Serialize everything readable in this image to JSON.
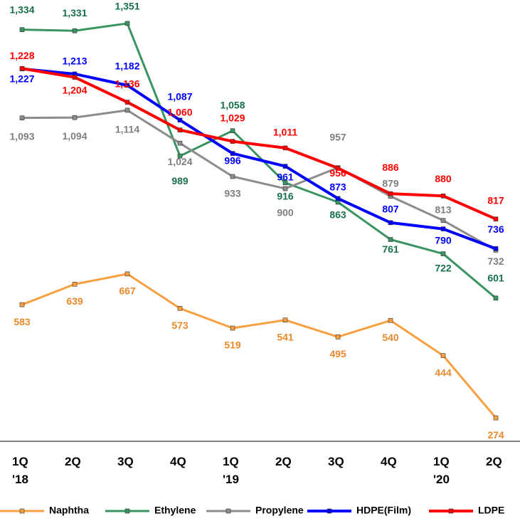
{
  "chart_data": {
    "type": "line",
    "categories": [
      "1Q\n'18",
      "2Q",
      "3Q",
      "4Q",
      "1Q\n'19",
      "2Q",
      "3Q",
      "4Q",
      "1Q\n'20",
      "2Q"
    ],
    "ylim": [
      210,
      1415
    ],
    "series": [
      {
        "name": "Naphtha",
        "color": "#f8a040",
        "label_color": "#e8892a",
        "values": [
          583,
          639,
          667,
          573,
          519,
          541,
          495,
          540,
          444,
          274
        ],
        "value_labels": [
          "583",
          "639",
          "667",
          "573",
          "519",
          "541",
          "495",
          "540",
          "444",
          "274"
        ]
      },
      {
        "name": "Ethylene",
        "color": "#3a9462",
        "label_color": "#17704a",
        "values": [
          1334,
          1331,
          1351,
          989,
          1058,
          916,
          863,
          761,
          722,
          601
        ],
        "value_labels": [
          "1,334",
          "1,331",
          "1,351",
          "989",
          "1,058",
          "916",
          "863",
          "761",
          "722",
          "601"
        ]
      },
      {
        "name": "Propylene",
        "color": "#8c8c8c",
        "label_color": "#7f7f7f",
        "values": [
          1093,
          1094,
          1114,
          1024,
          933,
          900,
          957,
          879,
          813,
          732
        ],
        "value_labels": [
          "1,093",
          "1,094",
          "1,114",
          "1,024",
          "933",
          "900",
          "957",
          "879",
          "813",
          "732"
        ]
      },
      {
        "name": "HDPE(Film)",
        "color": "#0000ff",
        "label_color": "#0000ff",
        "values": [
          1227,
          1213,
          1182,
          1087,
          996,
          961,
          873,
          807,
          790,
          736
        ],
        "value_labels": [
          "1,227",
          "1,213",
          "1,182",
          "1,087",
          "996",
          "961",
          "873",
          "807",
          "790",
          "736"
        ]
      },
      {
        "name": "LDPE",
        "color": "#ff0000",
        "label_color": "#ff0000",
        "values": [
          1228,
          1204,
          1136,
          1060,
          1029,
          1011,
          956,
          886,
          880,
          817
        ],
        "value_labels": [
          "1,228",
          "1,204",
          "1,136",
          "1,060",
          "1,029",
          "1,011",
          "956",
          "886",
          "880",
          "817"
        ]
      }
    ]
  }
}
